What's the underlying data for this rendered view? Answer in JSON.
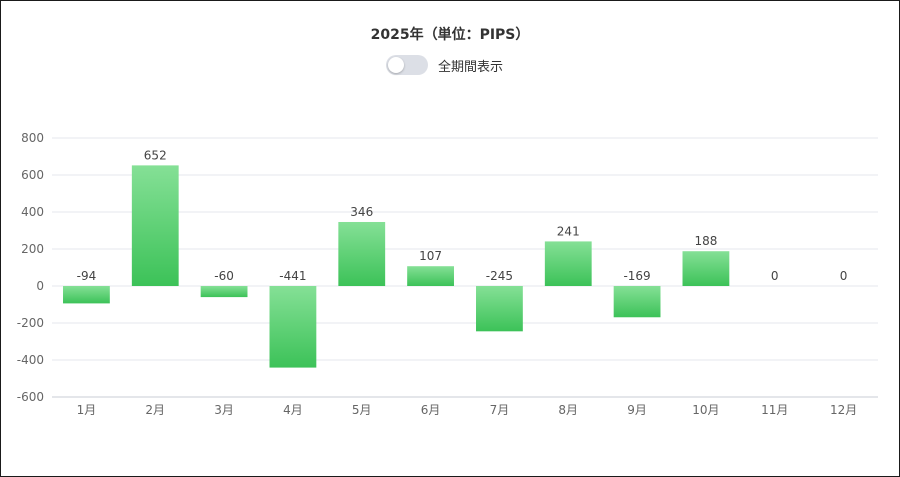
{
  "header": {
    "title": "2025年（単位：PIPS）",
    "toggle_label": "全期間表示",
    "toggle_on": false
  },
  "colors": {
    "bar_top": "#85e096",
    "bar_bottom": "#3cc258",
    "grid": "#e4e7ee",
    "axis": "#c9cdd6"
  },
  "chart_data": {
    "type": "bar",
    "title": "2025年（単位：PIPS）",
    "categories": [
      "1月",
      "2月",
      "3月",
      "4月",
      "5月",
      "6月",
      "7月",
      "8月",
      "9月",
      "10月",
      "11月",
      "12月"
    ],
    "values": [
      -94,
      652,
      -60,
      -441,
      346,
      107,
      -245,
      241,
      -169,
      188,
      0,
      0
    ],
    "data_labels": [
      "-94",
      "652",
      "-60",
      "-441",
      "346",
      "107",
      "-245",
      "241",
      "-169",
      "188",
      "0",
      "0"
    ],
    "ylim": [
      -600,
      800
    ],
    "yticks": [
      -600,
      -400,
      -200,
      0,
      200,
      400,
      600,
      800
    ],
    "ytick_labels": [
      "-600",
      "-400",
      "-200",
      "0",
      "200",
      "400",
      "600",
      "800"
    ],
    "xlabel": "",
    "ylabel": "",
    "grid": true,
    "legend": "none"
  }
}
